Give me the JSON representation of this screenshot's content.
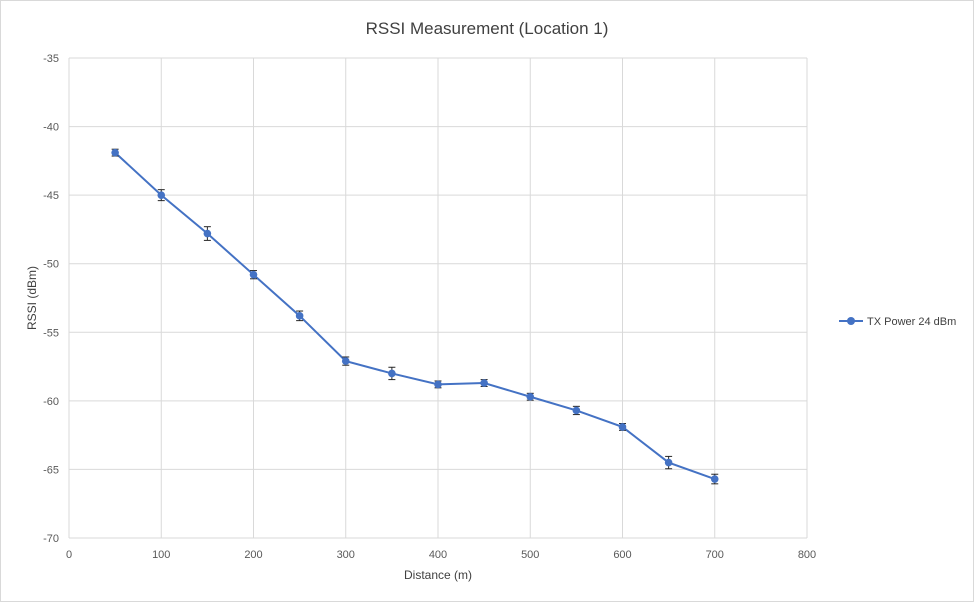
{
  "chart_data": {
    "type": "line",
    "title": "RSSI Measurement  (Location 1)",
    "xlabel": "Distance (m)",
    "ylabel": "RSSI (dBm)",
    "xlim": [
      0,
      800
    ],
    "ylim": [
      -70,
      -35
    ],
    "xticks": [
      0,
      100,
      200,
      300,
      400,
      500,
      600,
      700,
      800
    ],
    "yticks": [
      -35,
      -40,
      -45,
      -50,
      -55,
      -60,
      -65,
      -70
    ],
    "grid": true,
    "legend_position": "right",
    "series": [
      {
        "name": "TX Power 24 dBm",
        "color": "#4472c4",
        "x": [
          50,
          100,
          150,
          200,
          250,
          300,
          350,
          400,
          450,
          500,
          550,
          600,
          650,
          700
        ],
        "y": [
          -41.9,
          -45.0,
          -47.8,
          -50.8,
          -53.8,
          -57.1,
          -58.0,
          -58.8,
          -58.7,
          -59.7,
          -60.7,
          -61.9,
          -64.5,
          -65.7
        ],
        "error": [
          0.25,
          0.4,
          0.5,
          0.3,
          0.35,
          0.3,
          0.45,
          0.25,
          0.25,
          0.25,
          0.3,
          0.25,
          0.45,
          0.35
        ]
      }
    ]
  }
}
